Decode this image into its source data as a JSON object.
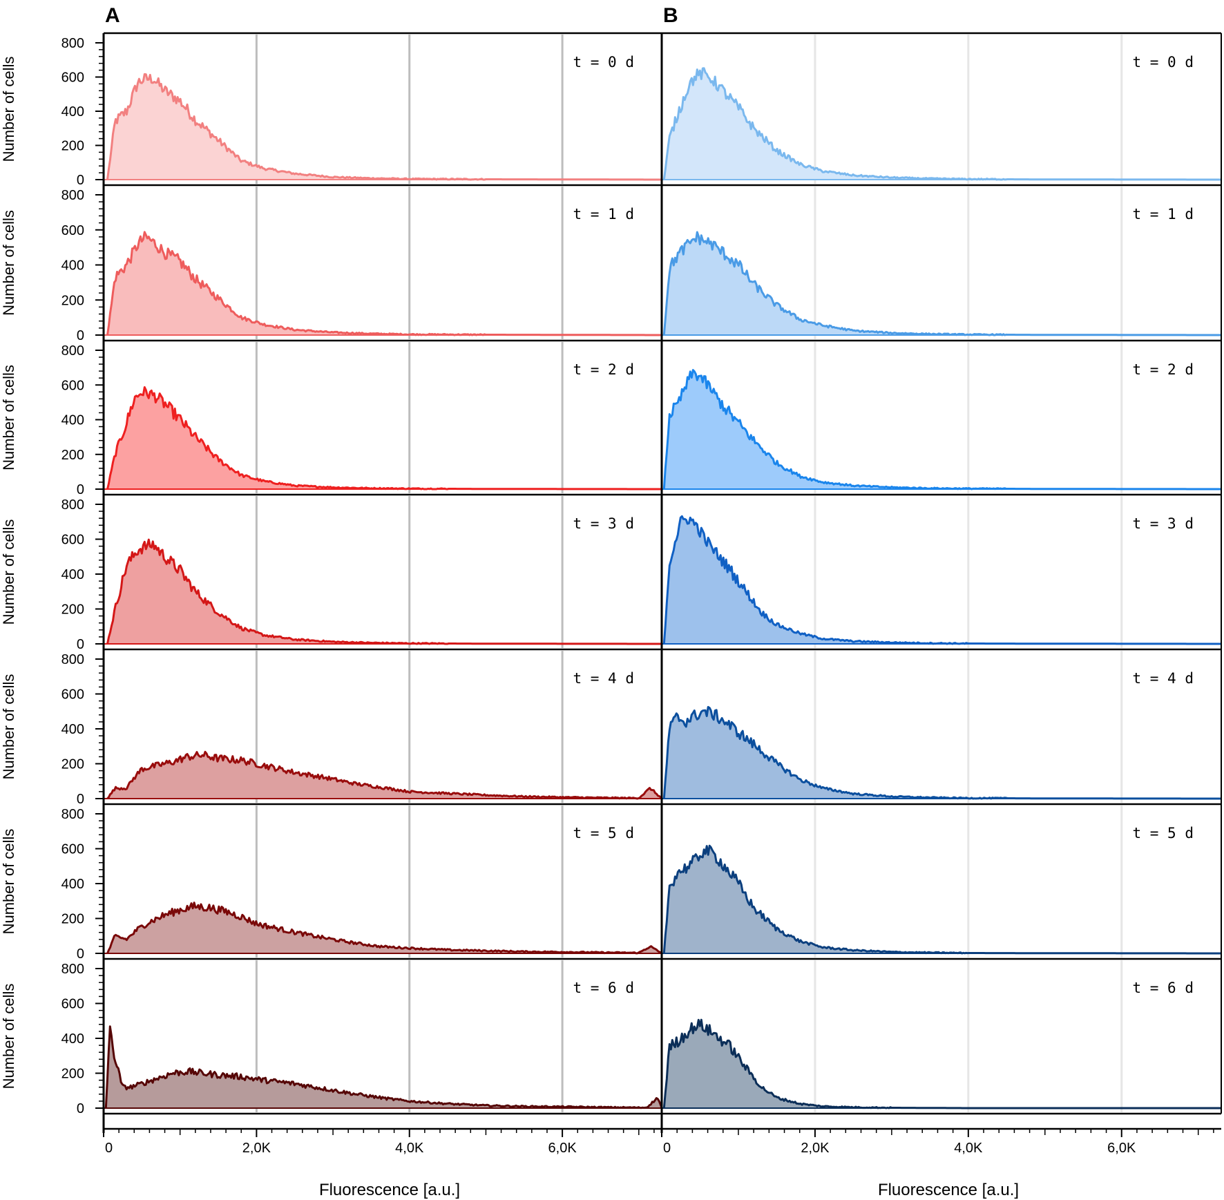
{
  "chart_data": {
    "type": "area",
    "panels": [
      {
        "label": "A",
        "xlabel": "Fluorescence [a.u.]",
        "ylabel": "Number of cells",
        "xlim": [
          0,
          7300
        ],
        "ylim": [
          0,
          800
        ],
        "x_ticks": [
          "0",
          "2,0K",
          "4,0K",
          "6,0K"
        ],
        "y_ticks": [
          "0",
          "200",
          "400",
          "600",
          "800"
        ],
        "grid": "vertical",
        "subplots": [
          {
            "label": "t = 0 d",
            "color": "#f28080",
            "fill": "#fbd3d3",
            "x": [
              50,
              150,
              300,
              450,
              550,
              650,
              800,
              1000,
              1200,
              1500,
              1800,
              2100,
              2500,
              3000,
              3500,
              4000,
              5000,
              7300
            ],
            "values": [
              0,
              340,
              400,
              570,
              590,
              590,
              520,
              460,
              350,
              230,
              110,
              65,
              35,
              15,
              8,
              4,
              2,
              0
            ]
          },
          {
            "label": "t = 1 d",
            "color": "#ee5c5c",
            "fill": "#f9bcbc",
            "x": [
              50,
              150,
              300,
              450,
              550,
              650,
              800,
              1000,
              1200,
              1500,
              1800,
              2100,
              2500,
              3000,
              3500,
              4000,
              5000,
              7300
            ],
            "values": [
              0,
              330,
              400,
              520,
              560,
              530,
              470,
              420,
              320,
              210,
              100,
              60,
              30,
              15,
              8,
              4,
              2,
              0
            ]
          },
          {
            "label": "t = 2 d",
            "color": "#ee2020",
            "fill": "#fca1a1",
            "x": [
              50,
              150,
              300,
              400,
              500,
              600,
              700,
              850,
              1000,
              1200,
              1500,
              1800,
              2100,
              2500,
              3000,
              3500,
              4000,
              5000,
              7300
            ],
            "values": [
              0,
              200,
              380,
              520,
              560,
              550,
              530,
              470,
              400,
              300,
              170,
              80,
              45,
              20,
              10,
              5,
              3,
              1,
              0
            ]
          },
          {
            "label": "t = 3 d",
            "color": "#d41717",
            "fill": "#eea0a0",
            "x": [
              50,
              150,
              300,
              450,
              550,
              650,
              800,
              1000,
              1200,
              1500,
              1800,
              2100,
              2500,
              3000,
              3500,
              4000,
              5000,
              7300
            ],
            "values": [
              0,
              200,
              450,
              540,
              560,
              570,
              500,
              420,
              300,
              180,
              90,
              50,
              25,
              12,
              6,
              3,
              1,
              0
            ]
          },
          {
            "label": "t = 4 d",
            "color": "#990c0c",
            "fill": "#dda0a0",
            "x": [
              50,
              150,
              300,
              400,
              500,
              700,
              900,
              1100,
              1300,
              1500,
              1800,
              2100,
              2500,
              2900,
              3300,
              3700,
              4000,
              4500,
              5000,
              5500,
              6000,
              6500,
              7000,
              7150,
              7300
            ],
            "values": [
              0,
              60,
              60,
              120,
              170,
              190,
              210,
              240,
              250,
              230,
              220,
              190,
              150,
              120,
              85,
              60,
              40,
              30,
              20,
              12,
              8,
              5,
              3,
              60,
              0
            ]
          },
          {
            "label": "t = 5 d",
            "color": "#7a0808",
            "fill": "#cca1a1",
            "x": [
              50,
              150,
              300,
              450,
              600,
              800,
              1000,
              1200,
              1400,
              1600,
              1800,
              2000,
              2400,
              2800,
              3200,
              3600,
              4000,
              4500,
              5000,
              5500,
              6000,
              6500,
              7000,
              7150,
              7300
            ],
            "values": [
              0,
              100,
              80,
              140,
              180,
              220,
              250,
              270,
              260,
              240,
              210,
              170,
              130,
              95,
              65,
              40,
              30,
              20,
              15,
              10,
              8,
              5,
              3,
              40,
              0
            ]
          },
          {
            "label": "t = 6 d",
            "color": "#560606",
            "fill": "#b69b9b",
            "x": [
              30,
              80,
              150,
              250,
              350,
              500,
              700,
              900,
              1100,
              1300,
              1500,
              1800,
              2100,
              2500,
              2900,
              3300,
              3700,
              4000,
              4500,
              5000,
              5500,
              6000,
              6500,
              7000,
              7100,
              7250,
              7300
            ],
            "values": [
              0,
              450,
              280,
              120,
              120,
              140,
              170,
              200,
              210,
              200,
              190,
              180,
              160,
              140,
              110,
              80,
              55,
              40,
              25,
              15,
              10,
              8,
              5,
              3,
              3,
              60,
              0
            ]
          }
        ]
      },
      {
        "label": "B",
        "xlabel": "Fluorescence [a.u.]",
        "ylabel": "",
        "xlim": [
          0,
          7300
        ],
        "ylim": [
          0,
          800
        ],
        "x_ticks": [
          "0",
          "2,0K",
          "4,0K",
          "6,0K"
        ],
        "grid": "vertical",
        "subplots": [
          {
            "label": "t = 0 d",
            "color": "#7ab8ee",
            "fill": "#d3e6fa",
            "x": [
              30,
              100,
              200,
              350,
              450,
              550,
              650,
              800,
              1000,
              1200,
              1500,
              1800,
              2100,
              2500,
              3000,
              3500,
              4000,
              5000,
              7300
            ],
            "values": [
              0,
              240,
              370,
              550,
              610,
              620,
              590,
              520,
              420,
              300,
              170,
              90,
              50,
              25,
              12,
              6,
              3,
              1,
              0
            ]
          },
          {
            "label": "t = 1 d",
            "color": "#4a9be6",
            "fill": "#bcd9f7",
            "x": [
              30,
              100,
              200,
              350,
              450,
              550,
              650,
              800,
              1000,
              1200,
              1500,
              1800,
              2100,
              2500,
              3000,
              3500,
              4000,
              5000,
              7300
            ],
            "values": [
              0,
              380,
              450,
              520,
              560,
              540,
              520,
              470,
              400,
              290,
              170,
              90,
              55,
              25,
              12,
              6,
              3,
              1,
              0
            ]
          },
          {
            "label": "t = 2 d",
            "color": "#1a85ec",
            "fill": "#9dcbfb",
            "x": [
              30,
              100,
              200,
              300,
              400,
              500,
              600,
              800,
              1000,
              1200,
              1500,
              1800,
              2100,
              2500,
              3000,
              3500,
              4000,
              5000,
              7300
            ],
            "values": [
              0,
              430,
              480,
              580,
              670,
              650,
              600,
              480,
              380,
              280,
              150,
              75,
              40,
              20,
              10,
              5,
              3,
              1,
              0
            ]
          },
          {
            "label": "t = 3 d",
            "color": "#1060c4",
            "fill": "#9dc1ec",
            "x": [
              30,
              100,
              150,
              250,
              350,
              450,
              600,
              750,
              900,
              1100,
              1300,
              1500,
              1800,
              2100,
              2500,
              3000,
              3500,
              4000,
              5000,
              7300
            ],
            "values": [
              0,
              460,
              550,
              700,
              720,
              680,
              580,
              500,
              420,
              300,
              180,
              110,
              60,
              30,
              15,
              8,
              4,
              2,
              1,
              0
            ]
          },
          {
            "label": "t = 4 d",
            "color": "#0b4f9e",
            "fill": "#9fbcdf",
            "x": [
              30,
              100,
              200,
              300,
              450,
              550,
              650,
              800,
              1000,
              1200,
              1500,
              1800,
              2100,
              2500,
              3000,
              3500,
              4000,
              5000,
              7200,
              7300
            ],
            "values": [
              0,
              400,
              470,
              440,
              480,
              500,
              490,
              450,
              380,
              310,
              200,
              110,
              60,
              28,
              12,
              6,
              3,
              1,
              0,
              0
            ]
          },
          {
            "label": "t = 5 d",
            "color": "#0b3f7e",
            "fill": "#9fb3cb",
            "x": [
              30,
              100,
              200,
              350,
              450,
              550,
              650,
              800,
              1000,
              1200,
              1500,
              1800,
              2100,
              2500,
              3000,
              3500,
              4000,
              5000,
              7300
            ],
            "values": [
              0,
              380,
              460,
              500,
              540,
              590,
              580,
              510,
              400,
              260,
              140,
              70,
              35,
              18,
              8,
              4,
              2,
              1,
              0
            ]
          },
          {
            "label": "t = 6 d",
            "color": "#0b2e58",
            "fill": "#9aa9b9",
            "x": [
              30,
              100,
              200,
              300,
              400,
              500,
              600,
              700,
              900,
              1100,
              1300,
              1500,
              1800,
              2100,
              2500,
              3000,
              3500,
              4000,
              7300
            ],
            "values": [
              0,
              350,
              380,
              420,
              460,
              480,
              450,
              420,
              350,
              230,
              120,
              60,
              25,
              10,
              5,
              2,
              1,
              0,
              0
            ]
          }
        ]
      }
    ]
  }
}
